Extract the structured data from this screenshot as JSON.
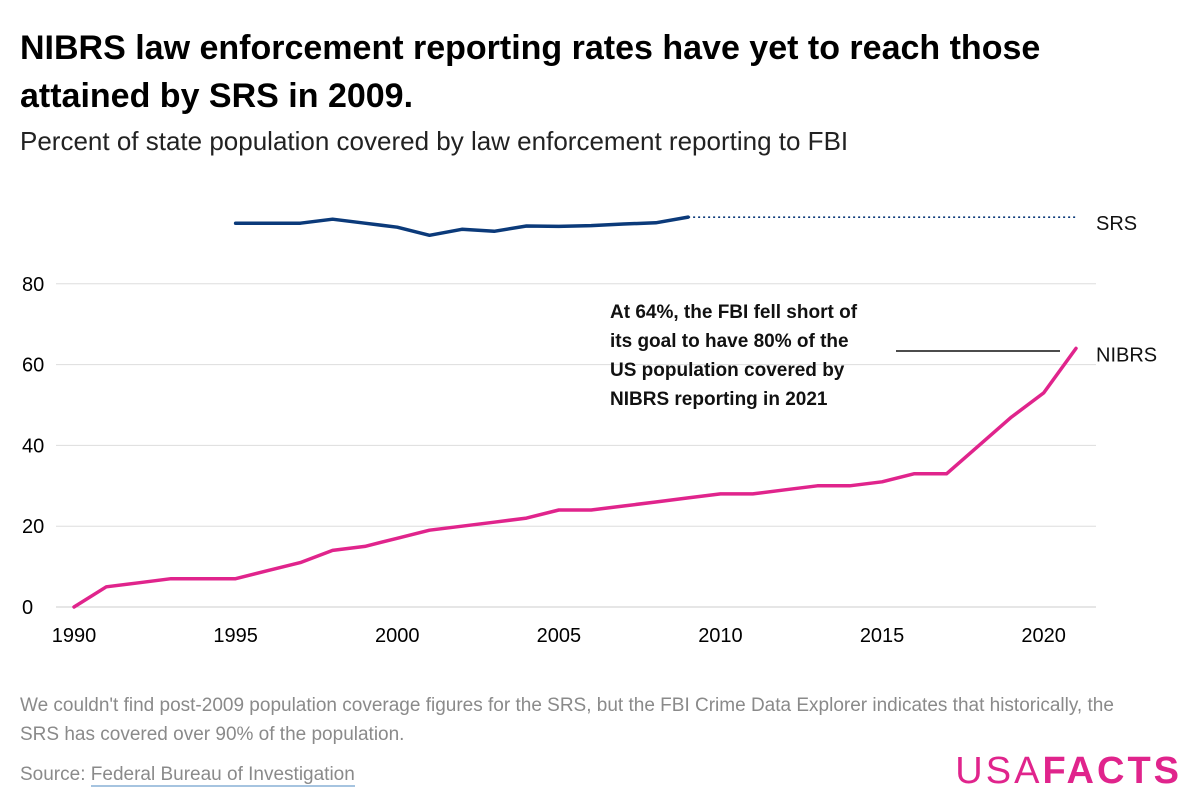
{
  "header": {
    "title": "NIBRS law enforcement reporting rates have yet to reach those attained by SRS in 2009.",
    "subtitle": "Percent of state population covered by law enforcement reporting to FBI"
  },
  "footer": {
    "note": "We couldn't find post-2009 population coverage figures for the SRS, but the FBI Crime Data Explorer indicates that historically, the SRS has covered over 90% of the population.",
    "source_prefix": "Source: ",
    "source_link": "Federal Bureau of Investigation",
    "logo_light": "USA",
    "logo_bold": "FACTS"
  },
  "colors": {
    "srs": "#0b3a7a",
    "nibrs": "#e0248c",
    "grid": "#dddddd",
    "axis_text": "#000000"
  },
  "chart_data": {
    "type": "line",
    "title": "",
    "xlabel": "",
    "ylabel": "",
    "xlim": [
      1990,
      2021
    ],
    "ylim": [
      0,
      95
    ],
    "x_ticks": [
      1990,
      1995,
      2000,
      2005,
      2010,
      2015,
      2020
    ],
    "y_ticks": [
      0,
      20,
      40,
      60,
      80
    ],
    "grid": true,
    "series": [
      {
        "name": "SRS",
        "x": [
          1995,
          1996,
          1997,
          1998,
          1999,
          2000,
          2001,
          2002,
          2003,
          2004,
          2005,
          2006,
          2007,
          2008,
          2009
        ],
        "values": [
          95,
          95,
          95,
          96,
          95,
          94,
          92,
          93.5,
          93,
          94.3,
          94.2,
          94.4,
          94.8,
          95.1,
          96.5
        ],
        "extension": {
          "x": [
            2009,
            2021
          ],
          "values": [
            96.5,
            96.5
          ],
          "style": "dotted"
        }
      },
      {
        "name": "NIBRS",
        "x": [
          1990,
          1991,
          1992,
          1993,
          1994,
          1995,
          1996,
          1997,
          1998,
          1999,
          2000,
          2001,
          2002,
          2003,
          2004,
          2005,
          2006,
          2007,
          2008,
          2009,
          2010,
          2011,
          2012,
          2013,
          2014,
          2015,
          2016,
          2017,
          2018,
          2019,
          2020,
          2021
        ],
        "values": [
          0,
          5,
          6,
          7,
          7,
          7,
          9,
          11,
          14,
          15,
          17,
          19,
          20,
          21,
          22,
          24,
          24,
          25,
          26,
          27,
          28,
          28,
          29,
          30,
          30,
          31,
          33,
          33,
          40,
          47,
          53,
          64
        ]
      }
    ],
    "annotation": {
      "lines": [
        "At 64%, the FBI fell short of",
        "its goal to have 80% of the",
        "US population covered by",
        "NIBRS reporting in 2021"
      ],
      "points_to": {
        "x": 2021,
        "y": 64
      }
    }
  }
}
